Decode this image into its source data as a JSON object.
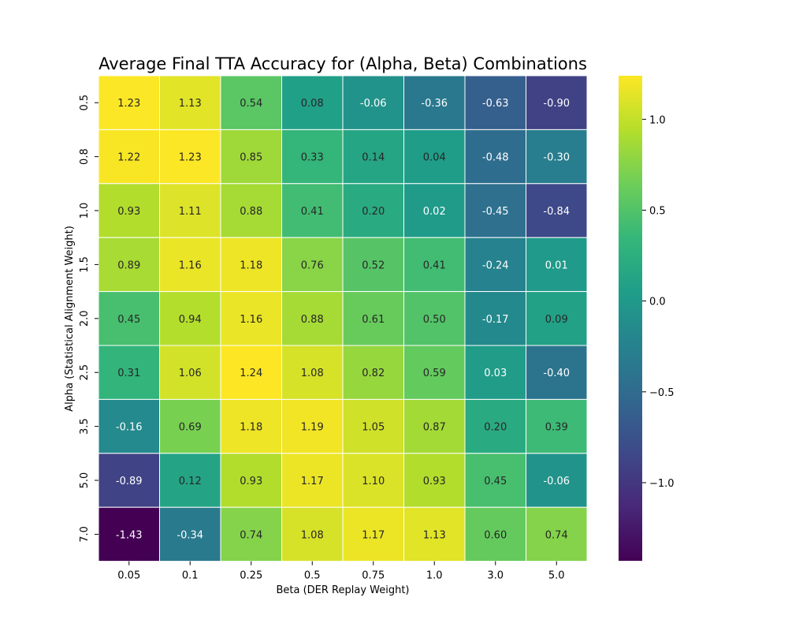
{
  "chart_data": {
    "type": "heatmap",
    "title": "Average Final TTA Accuracy for (Alpha, Beta) Combinations",
    "xlabel": "Beta (DER Replay Weight)",
    "ylabel": "Alpha (Statistical Alignment Weight)",
    "x_categories": [
      "0.05",
      "0.1",
      "0.25",
      "0.5",
      "0.75",
      "1.0",
      "3.0",
      "5.0"
    ],
    "y_categories": [
      "0.5",
      "0.8",
      "1.0",
      "1.5",
      "2.0",
      "2.5",
      "3.5",
      "5.0",
      "7.0"
    ],
    "values": [
      [
        1.23,
        1.13,
        0.54,
        0.08,
        -0.06,
        -0.36,
        -0.63,
        -0.9
      ],
      [
        1.22,
        1.23,
        0.85,
        0.33,
        0.14,
        0.04,
        -0.48,
        -0.3
      ],
      [
        0.93,
        1.11,
        0.88,
        0.41,
        0.2,
        0.02,
        -0.45,
        -0.84
      ],
      [
        0.89,
        1.16,
        1.18,
        0.76,
        0.52,
        0.41,
        -0.24,
        0.01
      ],
      [
        0.45,
        0.94,
        1.16,
        0.88,
        0.61,
        0.5,
        -0.17,
        0.09
      ],
      [
        0.31,
        1.06,
        1.24,
        1.08,
        0.82,
        0.59,
        0.03,
        -0.4
      ],
      [
        -0.16,
        0.69,
        1.18,
        1.19,
        1.05,
        0.87,
        0.2,
        0.39
      ],
      [
        -0.89,
        0.12,
        0.93,
        1.17,
        1.1,
        0.93,
        0.45,
        -0.06
      ],
      [
        -1.43,
        -0.34,
        0.74,
        1.08,
        1.17,
        1.13,
        0.6,
        0.74
      ]
    ],
    "colormap": "viridis",
    "vmin": -1.43,
    "vmax": 1.24,
    "colorbar_ticks": [
      "1.0",
      "0.5",
      "0.0",
      "−0.5",
      "−1.0"
    ],
    "colorbar_tick_values": [
      1.0,
      0.5,
      0.0,
      -0.5,
      -1.0
    ],
    "annotations": true,
    "grid_lines": "white",
    "legend": "colorbar-right"
  }
}
